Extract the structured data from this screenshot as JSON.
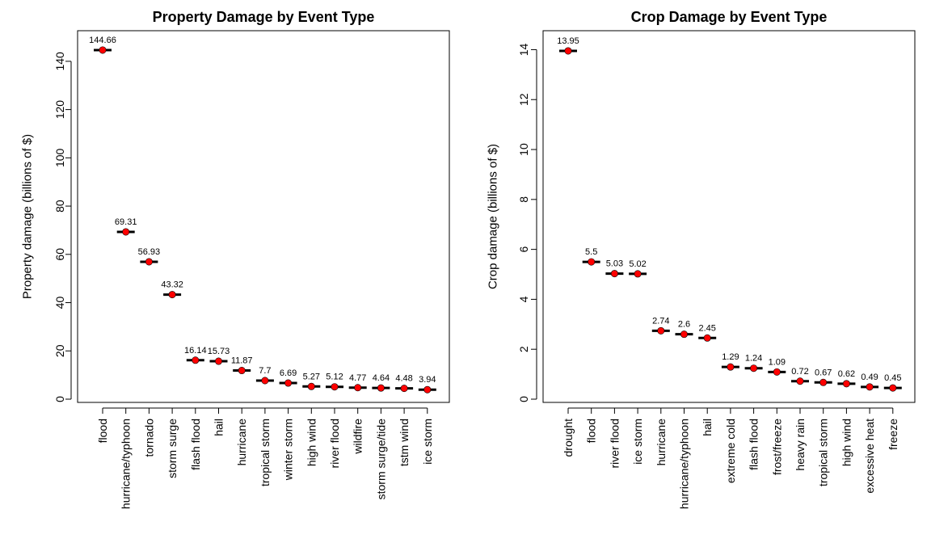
{
  "chart_data": [
    {
      "type": "scatter",
      "title": "Property Damage by Event Type",
      "xlabel": "",
      "ylabel": "Property damage (billions of $)",
      "ylim": [
        0,
        150
      ],
      "yticks": [
        0,
        20,
        40,
        60,
        80,
        100,
        120,
        140
      ],
      "grid": false,
      "categories": [
        "flood",
        "hurricane/typhoon",
        "tornado",
        "storm surge",
        "flash flood",
        "hail",
        "hurricane",
        "tropical storm",
        "winter storm",
        "high wind",
        "river flood",
        "wildfire",
        "storm surge/tide",
        "tstm wind",
        "ice storm"
      ],
      "values": [
        144.66,
        69.31,
        56.93,
        43.32,
        16.14,
        15.73,
        11.87,
        7.7,
        6.69,
        5.27,
        5.12,
        4.77,
        4.64,
        4.48,
        3.94
      ],
      "value_labels": [
        "144.66",
        "69.31",
        "56.93",
        "43.32",
        "16.14",
        "15.73",
        "11.87",
        "7.7",
        "6.69",
        "5.27",
        "5.12",
        "4.77",
        "4.64",
        "4.48",
        "3.94"
      ],
      "marker_color": "#ff0000",
      "segment_color": "#000000"
    },
    {
      "type": "scatter",
      "title": "Crop Damage by Event Type",
      "xlabel": "",
      "ylabel": "Crop damage (billions of $)",
      "ylim": [
        0,
        14.5
      ],
      "yticks": [
        0,
        2,
        4,
        6,
        8,
        10,
        12,
        14
      ],
      "grid": false,
      "categories": [
        "drought",
        "flood",
        "river flood",
        "ice storm",
        "hurricane",
        "hurricane/typhoon",
        "hail",
        "extreme cold",
        "flash flood",
        "frost/freeze",
        "heavy rain",
        "tropical storm",
        "high wind",
        "excessive heat",
        "freeze"
      ],
      "values": [
        13.95,
        5.5,
        5.03,
        5.02,
        2.74,
        2.6,
        2.45,
        1.29,
        1.24,
        1.09,
        0.72,
        0.67,
        0.62,
        0.49,
        0.45
      ],
      "value_labels": [
        "13.95",
        "5.5",
        "5.03",
        "5.02",
        "2.74",
        "2.6",
        "2.45",
        "1.29",
        "1.24",
        "1.09",
        "0.72",
        "0.67",
        "0.62",
        "0.49",
        "0.45"
      ],
      "marker_color": "#ff0000",
      "segment_color": "#000000"
    }
  ]
}
